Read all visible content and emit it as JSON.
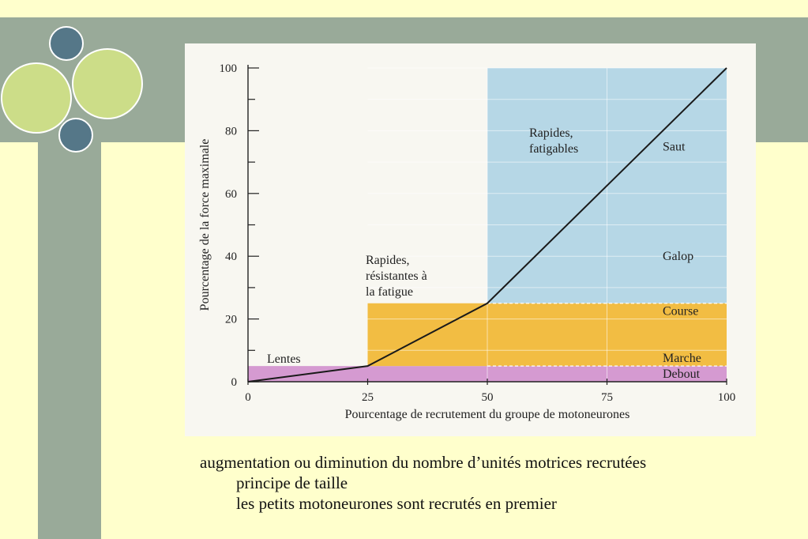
{
  "colors": {
    "slide_bg": "#ffffcc",
    "band": "#99aa99",
    "circle_light": "#ccdd88",
    "circle_dark": "#557788",
    "zone_slow": "#d59ad1",
    "zone_fast_resistant": "#f2bd43",
    "zone_fast_fatigable": "#b6d7e6",
    "line": "#1a1a1a"
  },
  "chart_data": {
    "type": "line",
    "xlabel": "Pourcentage de recrutement du groupe de motoneurones",
    "ylabel": "Pourcentage de la force maximale",
    "xlim": [
      0,
      100
    ],
    "ylim": [
      0,
      100
    ],
    "x_ticks": [
      "0",
      "25",
      "50",
      "75",
      "100"
    ],
    "y_ticks": [
      "0",
      "20",
      "40",
      "60",
      "80",
      "100"
    ],
    "series": [
      {
        "x": [
          0,
          25,
          50,
          100
        ],
        "y": [
          0,
          5,
          25,
          100
        ]
      }
    ],
    "zones": [
      {
        "label": "Lentes",
        "x0": 0,
        "x1": 100,
        "y0": 0,
        "y1": 5
      },
      {
        "label": "Rapides, résistantes à la fatigue",
        "label_lines": [
          "Rapides,",
          "résistantes à",
          "la fatigue"
        ],
        "x0": 25,
        "x1": 100,
        "y0": 5,
        "y1": 25
      },
      {
        "label": "Rapides, fatigables",
        "label_lines": [
          "Rapides,",
          "fatigables"
        ],
        "x0": 50,
        "x1": 100,
        "y0": 25,
        "y1": 100
      }
    ],
    "activities": [
      {
        "label": "Saut",
        "y": 75
      },
      {
        "label": "Galop",
        "y": 40
      },
      {
        "label": "Course",
        "y": 22.5
      },
      {
        "label": "Marche",
        "y": 7.5
      },
      {
        "label": "Debout",
        "y": 2.5
      }
    ]
  },
  "caption": {
    "line1": "augmentation ou diminution du nombre d’unités motrices recrutées",
    "line2": "principe de taille",
    "line3": "les petits motoneurones sont recrutés en premier"
  }
}
